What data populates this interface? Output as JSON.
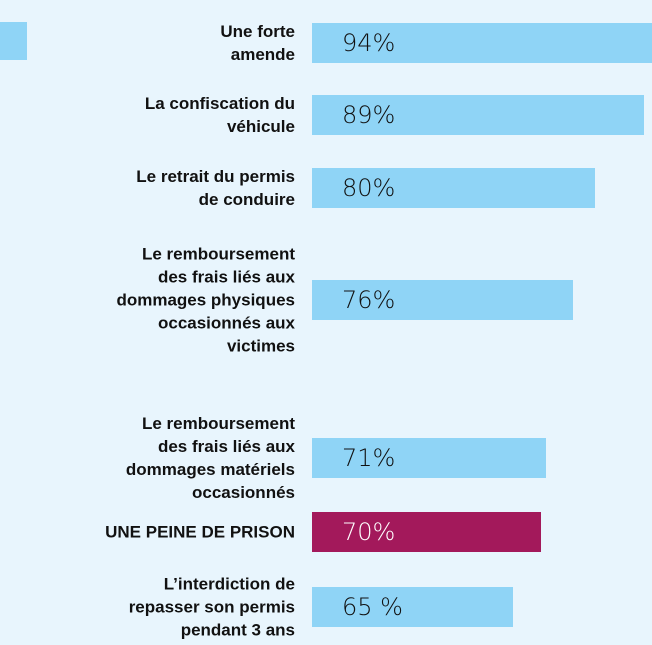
{
  "chart_data": {
    "type": "hbar",
    "categories": [
      "Une forte\namende",
      "La confiscation du\nvéhicule",
      "Le retrait du permis\nde conduire",
      "Le remboursement\ndes frais liés aux\ndommages physiques\noccasionnés aux\nvictimes",
      "Le remboursement\ndes frais liés aux\ndommages matériels\noccasionnés",
      "UNE PEINE DE PRISON",
      "L’interdiction de\nrepasser son permis\npendant 3 ans"
    ],
    "values": [
      94,
      89,
      80,
      76,
      71,
      70,
      65
    ],
    "value_labels": [
      "94%",
      "89%",
      "80%",
      "76%",
      "71%",
      "70%",
      "65 %"
    ],
    "colors": [
      "#8fd4f6",
      "#8fd4f6",
      "#8fd4f6",
      "#8fd4f6",
      "#8fd4f6",
      "#a3195b",
      "#8fd4f6"
    ],
    "xlim": [
      28,
      100
    ]
  }
}
